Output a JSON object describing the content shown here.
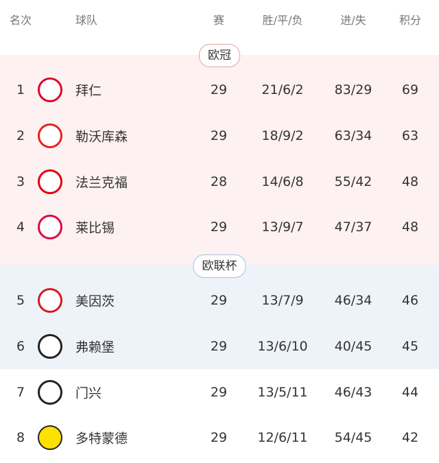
{
  "header": {
    "rank": "名次",
    "team": "球队",
    "played": "赛",
    "wdl": "胜/平/负",
    "goals": "进/失",
    "points": "积分"
  },
  "zones": [
    {
      "label": "欧冠",
      "border": "#e8a0a0",
      "bg": "#fdf1f1"
    },
    {
      "label": "欧联杯",
      "border": "#9cc3e3",
      "bg": "#eef3f9"
    }
  ],
  "rows": [
    {
      "rank": "1",
      "team": "拜仁",
      "played": "29",
      "wdl": "21/6/2",
      "goals": "83/29",
      "points": "69",
      "logo": "bayern-logo",
      "color": "#dc052d"
    },
    {
      "rank": "2",
      "team": "勒沃库森",
      "played": "29",
      "wdl": "18/9/2",
      "goals": "63/34",
      "points": "63",
      "logo": "leverkusen-logo",
      "color": "#e32221"
    },
    {
      "rank": "3",
      "team": "法兰克福",
      "played": "28",
      "wdl": "14/6/8",
      "goals": "55/42",
      "points": "48",
      "logo": "frankfurt-logo",
      "color": "#e1000f"
    },
    {
      "rank": "4",
      "team": "莱比锡",
      "played": "29",
      "wdl": "13/9/7",
      "goals": "47/37",
      "points": "48",
      "logo": "leipzig-logo",
      "color": "#dd0741"
    },
    {
      "rank": "5",
      "team": "美因茨",
      "played": "29",
      "wdl": "13/7/9",
      "goals": "46/34",
      "points": "46",
      "logo": "mainz-logo",
      "color": "#d71920"
    },
    {
      "rank": "6",
      "team": "弗赖堡",
      "played": "29",
      "wdl": "13/6/10",
      "goals": "40/45",
      "points": "45",
      "logo": "freiburg-logo",
      "color": "#222222"
    },
    {
      "rank": "7",
      "team": "门兴",
      "played": "29",
      "wdl": "13/5/11",
      "goals": "46/43",
      "points": "44",
      "logo": "gladbach-logo",
      "color": "#222222"
    },
    {
      "rank": "8",
      "team": "多特蒙德",
      "played": "29",
      "wdl": "12/6/11",
      "goals": "54/45",
      "points": "42",
      "logo": "dortmund-logo",
      "color": "#fde100"
    }
  ]
}
